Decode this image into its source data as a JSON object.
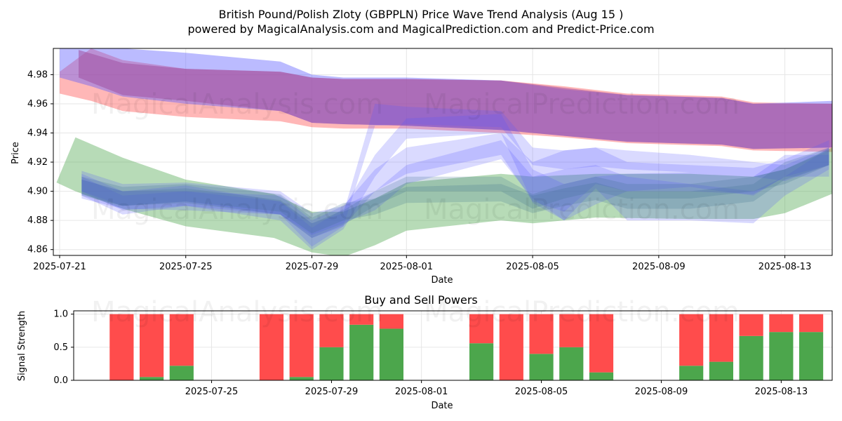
{
  "title_line1": "British Pound/Polish Zloty (GBPPLN) Price Wave Trend Analysis (Aug 15 )",
  "title_line2": "powered by MagicalAnalysis.com and MagicalPrediction.com and Predict-Price.com",
  "watermarks": [
    "MagicalAnalysis.com",
    "MagicalPrediction.com"
  ],
  "colors": {
    "red": "#ff4c4c",
    "green": "#4ca64c",
    "blue": "#5555ff",
    "purple": "#a050a0",
    "grid": "#e6e6e6"
  },
  "chart_data": [
    {
      "type": "area",
      "title": "",
      "xlabel": "Date",
      "ylabel": "Price",
      "xlim": [
        -0.2,
        24.5
      ],
      "ylim": [
        4.856,
        4.998
      ],
      "yticks": [
        4.86,
        4.88,
        4.9,
        4.92,
        4.94,
        4.96,
        4.98
      ],
      "xticks": [
        {
          "x": 0,
          "label": "2025-07-21"
        },
        {
          "x": 4,
          "label": "2025-07-25"
        },
        {
          "x": 8,
          "label": "2025-07-29"
        },
        {
          "x": 11,
          "label": "2025-08-01"
        },
        {
          "x": 15,
          "label": "2025-08-05"
        },
        {
          "x": 19,
          "label": "2025-08-09"
        },
        {
          "x": 23,
          "label": "2025-08-13"
        }
      ],
      "grid": true,
      "series": [
        {
          "name": "red band",
          "color": "red",
          "x": [
            0,
            1,
            2,
            4,
            7,
            8,
            9,
            11,
            14,
            16,
            18,
            21,
            22,
            24.5
          ],
          "upper": [
            4.982,
            4.998,
            4.99,
            4.984,
            4.982,
            4.978,
            4.977,
            4.977,
            4.976,
            4.972,
            4.967,
            4.965,
            4.961,
            4.96
          ],
          "lower": [
            4.967,
            4.962,
            4.955,
            4.951,
            4.948,
            4.944,
            4.943,
            4.943,
            4.94,
            4.937,
            4.933,
            4.931,
            4.928,
            4.927
          ]
        },
        {
          "name": "blue upper band",
          "color": "blue",
          "x": [
            0,
            1,
            2,
            4,
            7,
            8,
            9,
            11,
            14,
            16,
            18,
            21,
            22,
            24.5
          ],
          "upper": [
            4.998,
            4.998,
            4.998,
            4.995,
            4.989,
            4.98,
            4.978,
            4.978,
            4.976,
            4.97,
            4.966,
            4.964,
            4.96,
            4.962
          ],
          "lower": [
            4.978,
            4.972,
            4.965,
            4.96,
            4.955,
            4.947,
            4.946,
            4.945,
            4.942,
            4.938,
            4.934,
            4.932,
            4.929,
            4.93
          ]
        },
        {
          "name": "purple overlap band",
          "color": "purple",
          "x": [
            0.6,
            2,
            4,
            7,
            8,
            9,
            11,
            14,
            16,
            18,
            21,
            22,
            24.5
          ],
          "upper": [
            4.997,
            4.988,
            4.984,
            4.982,
            4.978,
            4.977,
            4.977,
            4.976,
            4.971,
            4.966,
            4.964,
            4.96,
            4.96
          ],
          "lower": [
            4.978,
            4.966,
            4.962,
            4.955,
            4.947,
            4.946,
            4.945,
            4.942,
            4.938,
            4.934,
            4.932,
            4.929,
            4.93
          ]
        },
        {
          "name": "green band",
          "color": "green",
          "x": [
            -0.1,
            0.5,
            2,
            4,
            6.8,
            8,
            9,
            10,
            11,
            14,
            15,
            17,
            20,
            22,
            23,
            24.7
          ],
          "upper": [
            4.906,
            4.937,
            4.923,
            4.908,
            4.898,
            4.886,
            4.886,
            4.895,
            4.906,
            4.912,
            4.91,
            4.912,
            4.912,
            4.91,
            4.915,
            4.932
          ],
          "lower": [
            4.906,
            4.9,
            4.888,
            4.876,
            4.868,
            4.858,
            4.855,
            4.863,
            4.873,
            4.88,
            4.878,
            4.882,
            4.881,
            4.881,
            4.885,
            4.9
          ]
        },
        {
          "name": "blue wave band 1",
          "color": "blue",
          "x": [
            0.7,
            2,
            4,
            7,
            8,
            9,
            10,
            11,
            14,
            15,
            16,
            17,
            18,
            20,
            22,
            23,
            24.4
          ],
          "upper": [
            4.914,
            4.905,
            4.906,
            4.9,
            4.885,
            4.89,
            4.915,
            4.93,
            4.94,
            4.92,
            4.928,
            4.93,
            4.92,
            4.918,
            4.916,
            4.922,
            4.935
          ],
          "lower": [
            4.9,
            4.89,
            4.893,
            4.884,
            4.862,
            4.876,
            4.9,
            4.912,
            4.925,
            4.893,
            4.886,
            4.905,
            4.9,
            4.903,
            4.897,
            4.91,
            4.918
          ]
        },
        {
          "name": "blue wave band 2",
          "color": "blue",
          "x": [
            0.7,
            2,
            4,
            7,
            8,
            9,
            10,
            11,
            14,
            15,
            16,
            17,
            18,
            20,
            22,
            23,
            24.4
          ],
          "upper": [
            4.912,
            4.9,
            4.904,
            4.893,
            4.875,
            4.888,
            4.925,
            4.95,
            4.953,
            4.915,
            4.905,
            4.91,
            4.912,
            4.913,
            4.91,
            4.925,
            4.925
          ],
          "lower": [
            4.897,
            4.884,
            4.89,
            4.88,
            4.86,
            4.874,
            4.91,
            4.936,
            4.94,
            4.892,
            4.88,
            4.891,
            4.9,
            4.9,
            4.898,
            4.91,
            4.91
          ]
        },
        {
          "name": "blue wave band 3",
          "color": "blue",
          "x": [
            0.7,
            2,
            4,
            7,
            8,
            9,
            10,
            11,
            14,
            15,
            16,
            17,
            18,
            20,
            22,
            23,
            24.4
          ],
          "upper": [
            4.908,
            4.9,
            4.9,
            4.897,
            4.88,
            4.89,
            4.9,
            4.918,
            4.935,
            4.91,
            4.915,
            4.918,
            4.91,
            4.905,
            4.9,
            4.91,
            4.93
          ],
          "lower": [
            4.895,
            4.888,
            4.887,
            4.884,
            4.87,
            4.878,
            4.887,
            4.905,
            4.922,
            4.895,
            4.88,
            4.902,
            4.88,
            4.88,
            4.878,
            4.897,
            4.915
          ]
        },
        {
          "name": "blue wave band 4",
          "color": "blue",
          "x": [
            0.7,
            2,
            4,
            7,
            8,
            9,
            10,
            11,
            14,
            15,
            16,
            17,
            18,
            20,
            22,
            23,
            24.4
          ],
          "upper": [
            4.91,
            4.897,
            4.9,
            4.893,
            4.878,
            4.885,
            4.96,
            4.958,
            4.955,
            4.93,
            4.928,
            4.93,
            4.928,
            4.925,
            4.92,
            4.918,
            4.93
          ],
          "lower": [
            4.9,
            4.887,
            4.89,
            4.884,
            4.868,
            4.876,
            4.945,
            4.946,
            4.944,
            4.918,
            4.915,
            4.917,
            4.915,
            4.913,
            4.91,
            4.907,
            4.918
          ]
        },
        {
          "name": "dark blue-green wave 1",
          "color": "#3a6f8f",
          "x": [
            0.7,
            2,
            4,
            7,
            8,
            9,
            10,
            11,
            14,
            15,
            16,
            17,
            18,
            20,
            22,
            23,
            24.4
          ],
          "upper": [
            4.91,
            4.903,
            4.905,
            4.898,
            4.882,
            4.892,
            4.895,
            4.903,
            4.905,
            4.897,
            4.902,
            4.906,
            4.9,
            4.9,
            4.905,
            4.92,
            4.93
          ],
          "lower": [
            4.897,
            4.89,
            4.893,
            4.886,
            4.871,
            4.88,
            4.884,
            4.892,
            4.893,
            4.885,
            4.89,
            4.894,
            4.888,
            4.888,
            4.893,
            4.908,
            4.918
          ]
        },
        {
          "name": "dark blue-green wave 2",
          "color": "#3a6f8f",
          "x": [
            0.7,
            2,
            4,
            7,
            8,
            9,
            10,
            11,
            14,
            15,
            16,
            17,
            18,
            20,
            22,
            23,
            24.4
          ],
          "upper": [
            4.908,
            4.9,
            4.902,
            4.894,
            4.878,
            4.887,
            4.9,
            4.91,
            4.91,
            4.898,
            4.905,
            4.91,
            4.905,
            4.905,
            4.91,
            4.915,
            4.928
          ],
          "lower": [
            4.898,
            4.89,
            4.892,
            4.884,
            4.868,
            4.877,
            4.89,
            4.9,
            4.9,
            4.888,
            4.895,
            4.9,
            4.895,
            4.895,
            4.9,
            4.905,
            4.918
          ]
        }
      ]
    },
    {
      "type": "bar",
      "title": "Buy and Sell Powers",
      "xlabel": "Date",
      "ylabel": "Signal Strength",
      "xlim": [
        -0.6,
        24.7
      ],
      "ylim": [
        0,
        1.05
      ],
      "yticks": [
        0.0,
        0.5,
        1.0
      ],
      "xticks": [
        {
          "x": 4,
          "label": "2025-07-25"
        },
        {
          "x": 8,
          "label": "2025-07-29"
        },
        {
          "x": 11,
          "label": "2025-08-01"
        },
        {
          "x": 15,
          "label": "2025-08-05"
        },
        {
          "x": 19,
          "label": "2025-08-09"
        },
        {
          "x": 23,
          "label": "2025-08-13"
        }
      ],
      "grid": true,
      "x": [
        1,
        2,
        3,
        6,
        7,
        8,
        9,
        10,
        13,
        14,
        15,
        16,
        17,
        20,
        21,
        22,
        23,
        24
      ],
      "series": [
        {
          "name": "Buy",
          "color": "green",
          "values": [
            0.0,
            0.05,
            0.22,
            0.0,
            0.05,
            0.5,
            0.84,
            0.78,
            0.56,
            0.0,
            0.4,
            0.5,
            0.12,
            0.22,
            0.28,
            0.67,
            0.73,
            0.73
          ]
        },
        {
          "name": "Sell",
          "color": "red",
          "values": [
            1.0,
            0.95,
            0.78,
            1.0,
            0.95,
            0.5,
            0.16,
            0.22,
            0.44,
            1.0,
            0.6,
            0.5,
            0.88,
            0.78,
            0.72,
            0.33,
            0.27,
            0.27
          ]
        }
      ]
    }
  ]
}
